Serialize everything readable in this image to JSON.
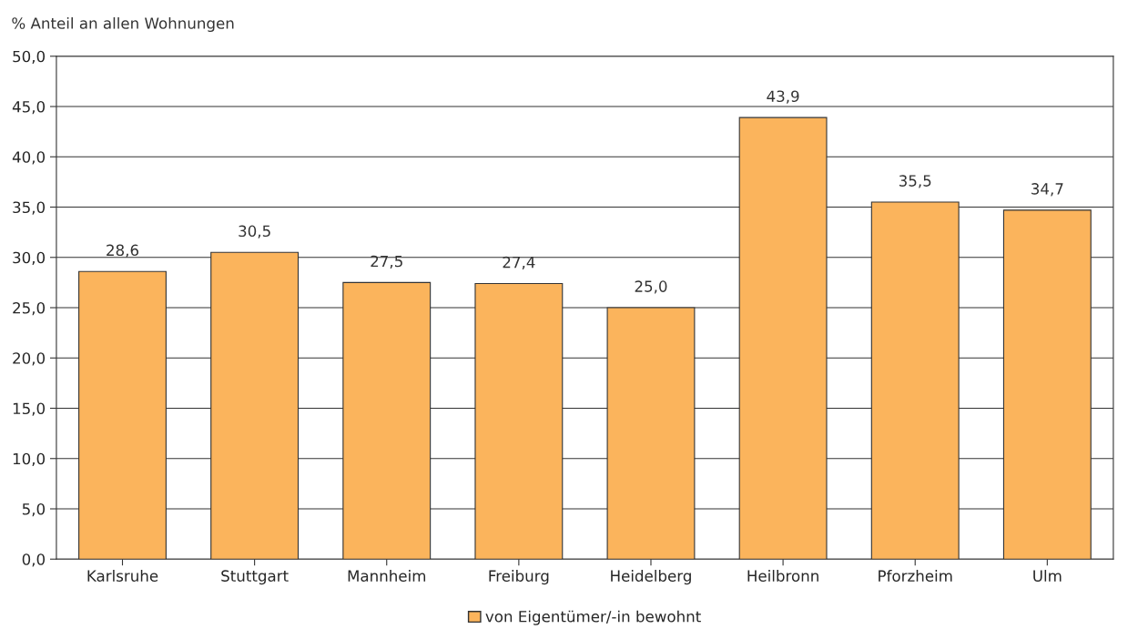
{
  "chart_data": {
    "type": "bar",
    "ylabel": "% Anteil an allen Wohnungen",
    "categories": [
      "Karlsruhe",
      "Stuttgart",
      "Mannheim",
      "Freiburg",
      "Heidelberg",
      "Heilbronn",
      "Pforzheim",
      "Ulm"
    ],
    "series": [
      {
        "name": "von Eigentümer/-in bewohnt",
        "color": "#fbb45c",
        "values": [
          28.6,
          30.5,
          27.5,
          27.4,
          25.0,
          43.9,
          35.5,
          34.7
        ],
        "value_labels": [
          "28,6",
          "30,5",
          "27,5",
          "27,4",
          "25,0",
          "43,9",
          "35,5",
          "34,7"
        ]
      }
    ],
    "ylim": [
      0,
      50
    ],
    "yticks": [
      {
        "value": 0,
        "label": "0,0"
      },
      {
        "value": 5,
        "label": "5,0"
      },
      {
        "value": 10,
        "label": "10,0"
      },
      {
        "value": 15,
        "label": "15,0"
      },
      {
        "value": 20,
        "label": "20,0"
      },
      {
        "value": 25,
        "label": "25,0"
      },
      {
        "value": 30,
        "label": "30,0"
      },
      {
        "value": 35,
        "label": "35,0"
      },
      {
        "value": 40,
        "label": "40,0"
      },
      {
        "value": 45,
        "label": "45,0"
      },
      {
        "value": 50,
        "label": "50,0"
      }
    ],
    "grid": "y",
    "legend": "bottom"
  }
}
